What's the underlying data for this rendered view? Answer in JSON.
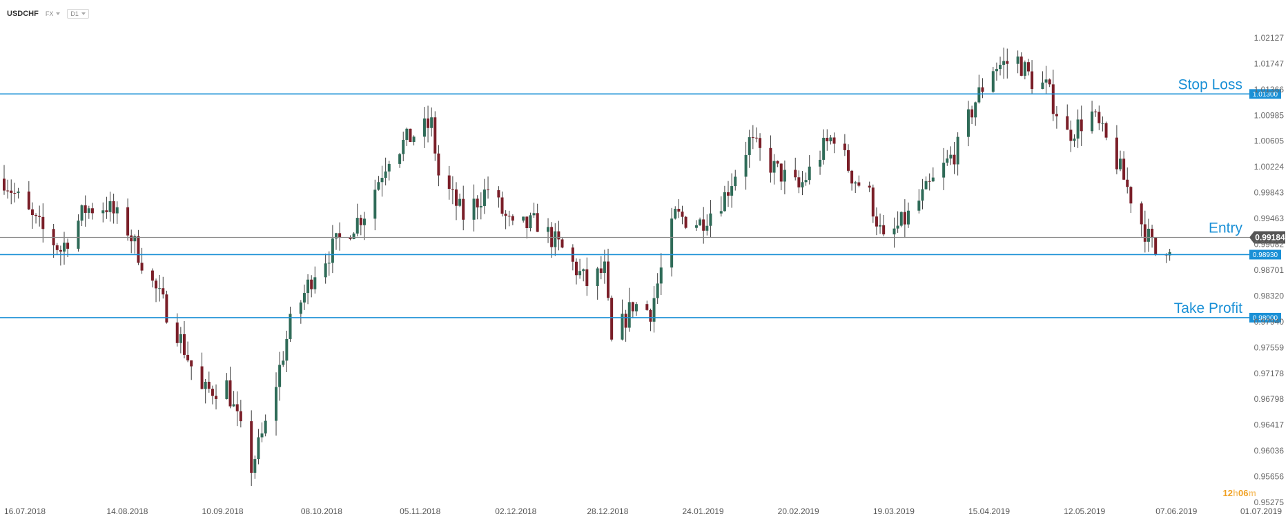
{
  "toolbar": {
    "symbol": "USDCHF",
    "market": "FX",
    "timeframe": "D1"
  },
  "colors": {
    "bull": "#2f6b58",
    "bear": "#7a1e28",
    "level_line": "#1a90d6",
    "entry_line": "#8a8a8a",
    "timer_number": "#f0a020",
    "timer_unit": "#f7c87c"
  },
  "timer": {
    "hours": "12",
    "h": "h",
    "minutes": "06",
    "m": "m"
  },
  "chart_data": {
    "type": "candlestick",
    "y_ticks": [
      1.02127,
      1.01747,
      1.01366,
      1.00985,
      1.00605,
      1.00224,
      0.99843,
      0.99463,
      0.99082,
      0.98701,
      0.9832,
      0.9794,
      0.97559,
      0.97178,
      0.96798,
      0.96417,
      0.96036,
      0.95656,
      0.95275
    ],
    "ylim": [
      0.95275,
      1.02127
    ],
    "x_ticks": [
      "16.07.2018",
      "14.08.2018",
      "10.09.2018",
      "08.10.2018",
      "05.11.2018",
      "02.12.2018",
      "28.12.2018",
      "24.01.2019",
      "20.02.2019",
      "19.03.2019",
      "15.04.2019",
      "12.05.2019",
      "07.06.2019",
      "01.07.2019"
    ],
    "x_start": "2018-07-16",
    "x_end": "2019-07-01",
    "levels": [
      {
        "name": "Stop Loss",
        "value": 1.013,
        "badge": "1.01300"
      },
      {
        "name": "Entry",
        "value": 0.99184,
        "badge": "0.99184"
      },
      {
        "name": "",
        "value": 0.9893,
        "badge": "0.98930"
      },
      {
        "name": "Take Profit",
        "value": 0.98,
        "badge": "0.98000"
      }
    ],
    "anchors": [
      [
        "2018-07-16",
        1.0005
      ],
      [
        "2018-07-24",
        0.9945
      ],
      [
        "2018-08-01",
        0.99
      ],
      [
        "2018-08-08",
        0.996
      ],
      [
        "2018-08-14",
        0.9965
      ],
      [
        "2018-08-20",
        0.993
      ],
      [
        "2018-08-27",
        0.985
      ],
      [
        "2018-09-03",
        0.978
      ],
      [
        "2018-09-10",
        0.969
      ],
      [
        "2018-09-17",
        0.97
      ],
      [
        "2018-09-24",
        0.958
      ],
      [
        "2018-09-28",
        0.964
      ],
      [
        "2018-10-05",
        0.979
      ],
      [
        "2018-10-12",
        0.987
      ],
      [
        "2018-10-19",
        0.9915
      ],
      [
        "2018-10-26",
        0.9955
      ],
      [
        "2018-11-02",
        1.004
      ],
      [
        "2018-11-09",
        1.007
      ],
      [
        "2018-11-14",
        1.0085
      ],
      [
        "2018-11-16",
        1.001
      ],
      [
        "2018-11-23",
        0.995
      ],
      [
        "2018-11-30",
        0.999
      ],
      [
        "2018-12-07",
        0.993
      ],
      [
        "2018-12-14",
        0.994
      ],
      [
        "2018-12-21",
        0.99
      ],
      [
        "2018-12-28",
        0.985
      ],
      [
        "2019-01-02",
        0.987
      ],
      [
        "2019-01-04",
        0.976
      ],
      [
        "2019-01-10",
        0.982
      ],
      [
        "2019-01-15",
        0.981
      ],
      [
        "2019-01-22",
        0.995
      ],
      [
        "2019-01-29",
        0.994
      ],
      [
        "2019-02-05",
        0.998
      ],
      [
        "2019-02-12",
        1.006
      ],
      [
        "2019-02-19",
        1.002
      ],
      [
        "2019-02-26",
        0.999
      ],
      [
        "2019-03-05",
        1.005
      ],
      [
        "2019-03-08",
        1.007
      ],
      [
        "2019-03-13",
        1.001
      ],
      [
        "2019-03-18",
        0.998
      ],
      [
        "2019-03-22",
        0.991
      ],
      [
        "2019-03-29",
        0.995
      ],
      [
        "2019-04-05",
        1.0
      ],
      [
        "2019-04-12",
        1.005
      ],
      [
        "2019-04-17",
        1.012
      ],
      [
        "2019-04-22",
        1.017
      ],
      [
        "2019-04-29",
        1.018
      ],
      [
        "2019-05-03",
        1.015
      ],
      [
        "2019-05-07",
        1.014
      ],
      [
        "2019-05-13",
        1.007
      ],
      [
        "2019-05-20",
        1.01
      ],
      [
        "2019-05-27",
        1.003
      ],
      [
        "2019-06-03",
        0.994
      ],
      [
        "2019-06-07",
        0.9895
      ],
      [
        "2019-06-11",
        0.991
      ]
    ]
  }
}
